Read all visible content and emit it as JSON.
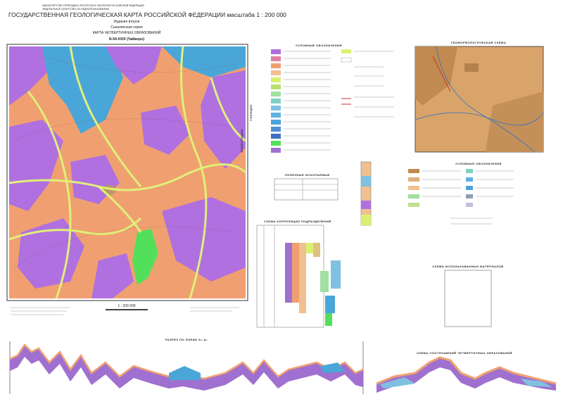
{
  "header": {
    "ministry": "МИНИСТЕРСТВО ПРИРОДНЫХ РЕСУРСОВ И ЭКОЛОГИИ РОССИЙСКОЙ ФЕДЕРАЦИИ",
    "agency": "ФЕДЕРАЛЬНОЕ АГЕНТСТВО ПО НЕДРОПОЛЬЗОВАНИЮ",
    "title": "ГОСУДАРСТВЕННАЯ ГЕОЛОГИЧЕСКАЯ КАРТА РОССИЙСКОЙ ФЕДЕРАЦИИ масштаба 1 : 200 000",
    "edition": "Издание второе",
    "series": "Сахалинская серия",
    "map_title": "КАРТА ЧЕТВЕРТИЧНЫХ ОБРАЗОВАНИЙ",
    "sheet": "N-54-XXIX (Чайворо)"
  },
  "map": {
    "scale": "1 : 200 000"
  },
  "legend": {
    "title": "УСЛОВНЫЕ ОБОЗНАЧЕНИЯ",
    "epochs": [
      "ГОЛОЦЕН",
      "ПЛЕЙСТОЦЕН"
    ]
  },
  "geomorph": {
    "title": "ГЕОМОРФОЛОГИЧЕСКАЯ СХЕМА",
    "legend_title": "УСЛОВНЫЕ ОБОЗНАЧЕНИЯ"
  },
  "minerals": {
    "title": "ПОЛЕЗНЫЕ ИСКОПАЕМЫЕ"
  },
  "correlation": {
    "title": "СХЕМА КОРРЕЛЯЦИИ ПОДРАЗДЕЛЕНИЙ"
  },
  "materials": {
    "title": "СХЕМА ИСПОЛЬЗОВАННЫХ МАТЕРИАЛОВ"
  },
  "section": {
    "title": "РАЗРЕЗ ПО ЛИНИИ А₁-А₂"
  },
  "relations": {
    "title": "СХЕМА СООТНОШЕНИЙ ЧЕТВЕРТИЧНЫХ ОБРАЗОВАНИЙ"
  }
}
